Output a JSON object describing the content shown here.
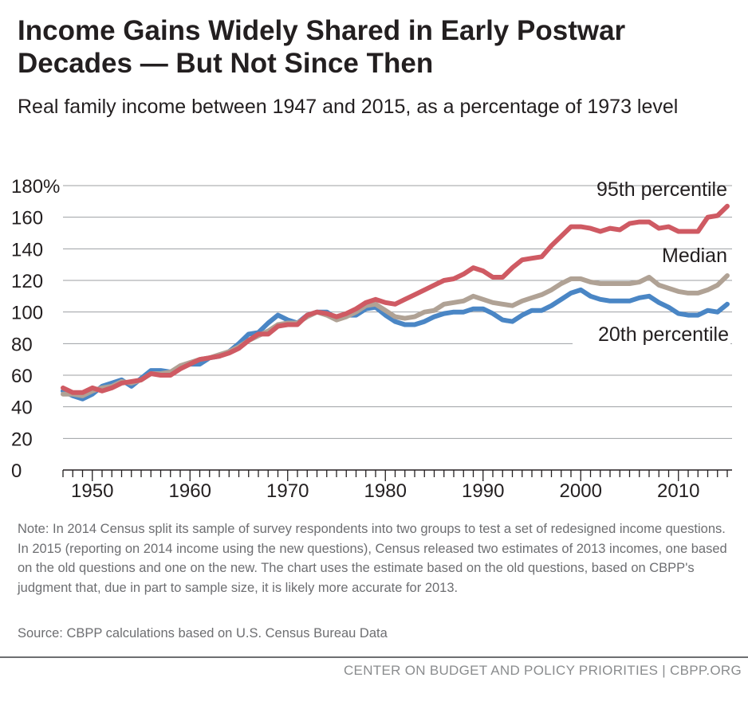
{
  "title": "Income Gains Widely Shared in Early Postwar Decades — But Not Since Then",
  "subtitle": "Real family income between 1947 and 2015, as a percentage of 1973 level",
  "note": "Note: In 2014 Census split its sample of survey respondents into two groups to test a set of redesigned income questions.  In 2015 (reporting on 2014 income using the new questions), Census released two estimates of 2013 incomes, one based on the old questions and one on the new.  The chart uses the estimate based on the old questions, based on CBPP's judgment that, due in part to sample size, it is likely more accurate for 2013.",
  "source": "Source: CBPP calculations based on U.S. Census Bureau Data",
  "footer": "CENTER ON BUDGET AND POLICY PRIORITIES | CBPP.ORG",
  "chart_data": {
    "type": "line",
    "title": "Income Gains Widely Shared in Early Postwar Decades — But Not Since Then",
    "subtitle": "Real family income between 1947 and 2015, as a percentage of 1973 level",
    "x_start": 1947,
    "x_end": 2015,
    "xlim": [
      1947,
      2015
    ],
    "ylim": [
      0,
      180
    ],
    "yticks": [
      0,
      20,
      40,
      60,
      80,
      100,
      120,
      140,
      160,
      180
    ],
    "ytick_labels": [
      "0",
      "20",
      "40",
      "60",
      "80",
      "100",
      "120",
      "140",
      "160",
      "180%"
    ],
    "xticks": [
      1950,
      1960,
      1970,
      1980,
      1990,
      2000,
      2010
    ],
    "xtick_labels": [
      "1950",
      "1960",
      "1970",
      "1980",
      "1990",
      "2000",
      "2010"
    ],
    "grid": "horizontal",
    "series": [
      {
        "name": "20th percentile",
        "color": "#4a86c5",
        "values": [
          50,
          47,
          45,
          48,
          53,
          55,
          57,
          53,
          58,
          63,
          63,
          62,
          65,
          67,
          67,
          71,
          72,
          75,
          80,
          86,
          87,
          93,
          98,
          95,
          93,
          98,
          100,
          100,
          96,
          98,
          98,
          102,
          103,
          98,
          94,
          92,
          92,
          94,
          97,
          99,
          100,
          100,
          102,
          102,
          99,
          95,
          94,
          98,
          101,
          101,
          104,
          108,
          112,
          114,
          110,
          108,
          107,
          107,
          107,
          109,
          110,
          106,
          103,
          99,
          98,
          98,
          101,
          100,
          105
        ]
      },
      {
        "name": "Median",
        "color": "#b0a295",
        "values": [
          48,
          48,
          47,
          50,
          52,
          53,
          56,
          55,
          57,
          61,
          61,
          62,
          66,
          68,
          70,
          71,
          73,
          75,
          78,
          82,
          85,
          88,
          92,
          93,
          93,
          97,
          100,
          98,
          95,
          97,
          100,
          104,
          105,
          101,
          97,
          96,
          97,
          100,
          101,
          105,
          106,
          107,
          110,
          108,
          106,
          105,
          104,
          107,
          109,
          111,
          114,
          118,
          121,
          121,
          119,
          118,
          118,
          118,
          118,
          119,
          122,
          117,
          115,
          113,
          112,
          112,
          114,
          117,
          123
        ]
      },
      {
        "name": "95th percentile",
        "color": "#cf5a63",
        "values": [
          52,
          49,
          49,
          52,
          50,
          52,
          55,
          56,
          57,
          61,
          60,
          60,
          64,
          67,
          70,
          71,
          72,
          74,
          77,
          82,
          86,
          86,
          91,
          92,
          92,
          98,
          100,
          99,
          97,
          99,
          102,
          106,
          108,
          106,
          105,
          108,
          111,
          114,
          117,
          120,
          121,
          124,
          128,
          126,
          122,
          122,
          128,
          133,
          134,
          135,
          142,
          148,
          154,
          154,
          153,
          151,
          153,
          152,
          156,
          157,
          157,
          153,
          154,
          151,
          151,
          151,
          160,
          161,
          167
        ]
      }
    ]
  }
}
